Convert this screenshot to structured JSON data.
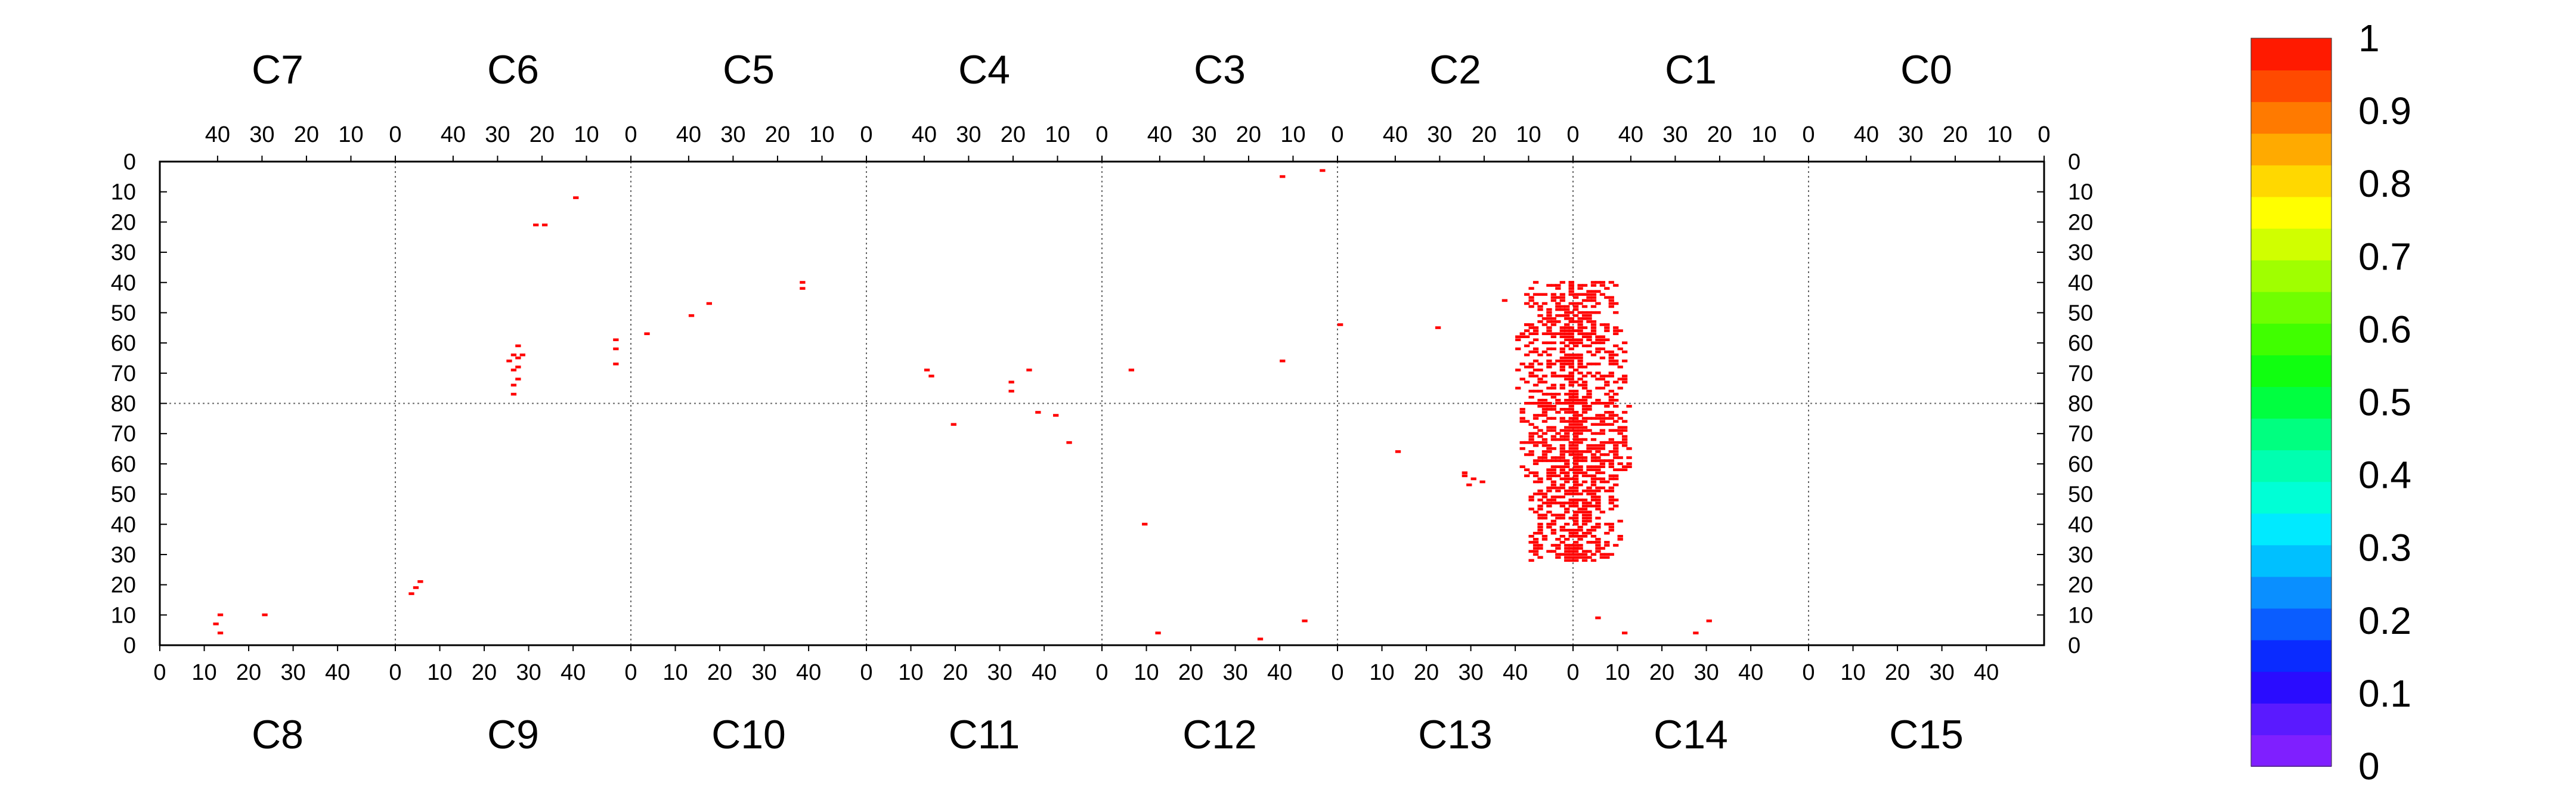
{
  "chart_data": {
    "type": "heatmap",
    "title": "",
    "xlabel": "",
    "ylabel": "",
    "x_ticks": [
      "0",
      "10",
      "20",
      "30",
      "40"
    ],
    "y_ticks": [
      "0",
      "10",
      "20",
      "30",
      "40",
      "50",
      "60",
      "70",
      "80"
    ],
    "panels_top": [
      "C7",
      "C6",
      "C5",
      "C4",
      "C3",
      "C2",
      "C1",
      "C0"
    ],
    "panels_bottom": [
      "C8",
      "C9",
      "C10",
      "C11",
      "C12",
      "C13",
      "C14",
      "C15"
    ],
    "panel_x_range": [
      0,
      53
    ],
    "row_y_range": [
      0,
      80
    ],
    "colorbar": {
      "ticks": [
        "0",
        "0.1",
        "0.2",
        "0.3",
        "0.4",
        "0.5",
        "0.6",
        "0.7",
        "0.8",
        "0.9",
        "1"
      ],
      "range": [
        0,
        1
      ],
      "colors": [
        "#7f1fff",
        "#5a1aff",
        "#2a0cff",
        "#0a2bff",
        "#0a5dff",
        "#0a8fff",
        "#00c0ff",
        "#00eaff",
        "#00ffd6",
        "#00ffb0",
        "#00ff80",
        "#00ff40",
        "#10ff10",
        "#40ff00",
        "#70ff00",
        "#a0ff00",
        "#d0ff00",
        "#ffff00",
        "#ffd800",
        "#ffaa00",
        "#ff7a00",
        "#ff4a00",
        "#ff1a00"
      ]
    },
    "value_color": "#ff0000",
    "cell_value": 1,
    "points": [
      [
        1,
        26,
        77
      ],
      [
        1,
        26,
        74
      ],
      [
        1,
        25,
        72
      ],
      [
        1,
        26,
        69
      ],
      [
        1,
        25,
        68
      ],
      [
        1,
        27,
        66
      ],
      [
        1,
        25,
        65
      ],
      [
        1,
        24,
        64
      ],
      [
        1,
        26,
        64
      ],
      [
        1,
        25,
        61
      ],
      [
        1,
        3,
        59
      ],
      [
        1,
        3,
        62
      ],
      [
        1,
        3,
        67
      ],
      [
        1,
        21,
        21
      ],
      [
        1,
        19,
        21
      ],
      [
        1,
        12,
        12
      ],
      [
        2,
        49,
        57
      ],
      [
        2,
        39,
        51
      ],
      [
        2,
        35,
        47
      ],
      [
        2,
        14,
        42
      ],
      [
        2,
        14,
        40
      ],
      [
        3,
        39,
        69
      ],
      [
        3,
        16,
        69
      ],
      [
        3,
        20,
        73
      ],
      [
        3,
        20,
        76
      ],
      [
        3,
        38,
        71
      ],
      [
        4,
        46,
        69
      ],
      [
        4,
        12,
        66
      ],
      [
        5,
        15,
        46
      ],
      [
        5,
        10,
        54
      ],
      [
        5,
        30,
        55
      ],
      [
        5,
        52,
        54
      ],
      [
        11,
        19,
        73
      ],
      [
        11,
        45,
        67
      ],
      [
        11,
        38,
        77
      ],
      [
        11,
        42,
        76
      ],
      [
        12,
        45,
        8
      ],
      [
        12,
        12,
        4
      ],
      [
        12,
        35,
        2
      ]
    ],
    "blob": [
      {
        "panels": [
          5,
          6
        ],
        "rows": [
          40,
          80
        ],
        "seed": 1,
        "density": 0.55
      },
      {
        "panels": [
          13,
          14
        ],
        "rows": [
          28,
          80
        ],
        "seed": 2,
        "density": 0.6
      }
    ],
    "extra_bottom": [
      [
        9,
        5,
        21
      ],
      [
        9,
        4,
        19
      ],
      [
        9,
        3,
        17
      ],
      [
        8,
        23,
        10
      ],
      [
        8,
        13,
        10
      ],
      [
        8,
        12,
        7
      ],
      [
        8,
        13,
        4
      ],
      [
        14,
        5,
        9
      ],
      [
        14,
        11,
        4
      ],
      [
        14,
        27,
        4
      ],
      [
        14,
        30,
        8
      ],
      [
        12,
        9,
        40
      ],
      [
        13,
        13,
        64
      ],
      [
        13,
        28,
        56
      ],
      [
        13,
        28,
        57
      ],
      [
        13,
        29,
        53
      ],
      [
        13,
        30,
        55
      ],
      [
        13,
        32,
        54
      ],
      [
        4,
        3,
        3
      ],
      [
        4,
        12,
        5
      ]
    ]
  }
}
